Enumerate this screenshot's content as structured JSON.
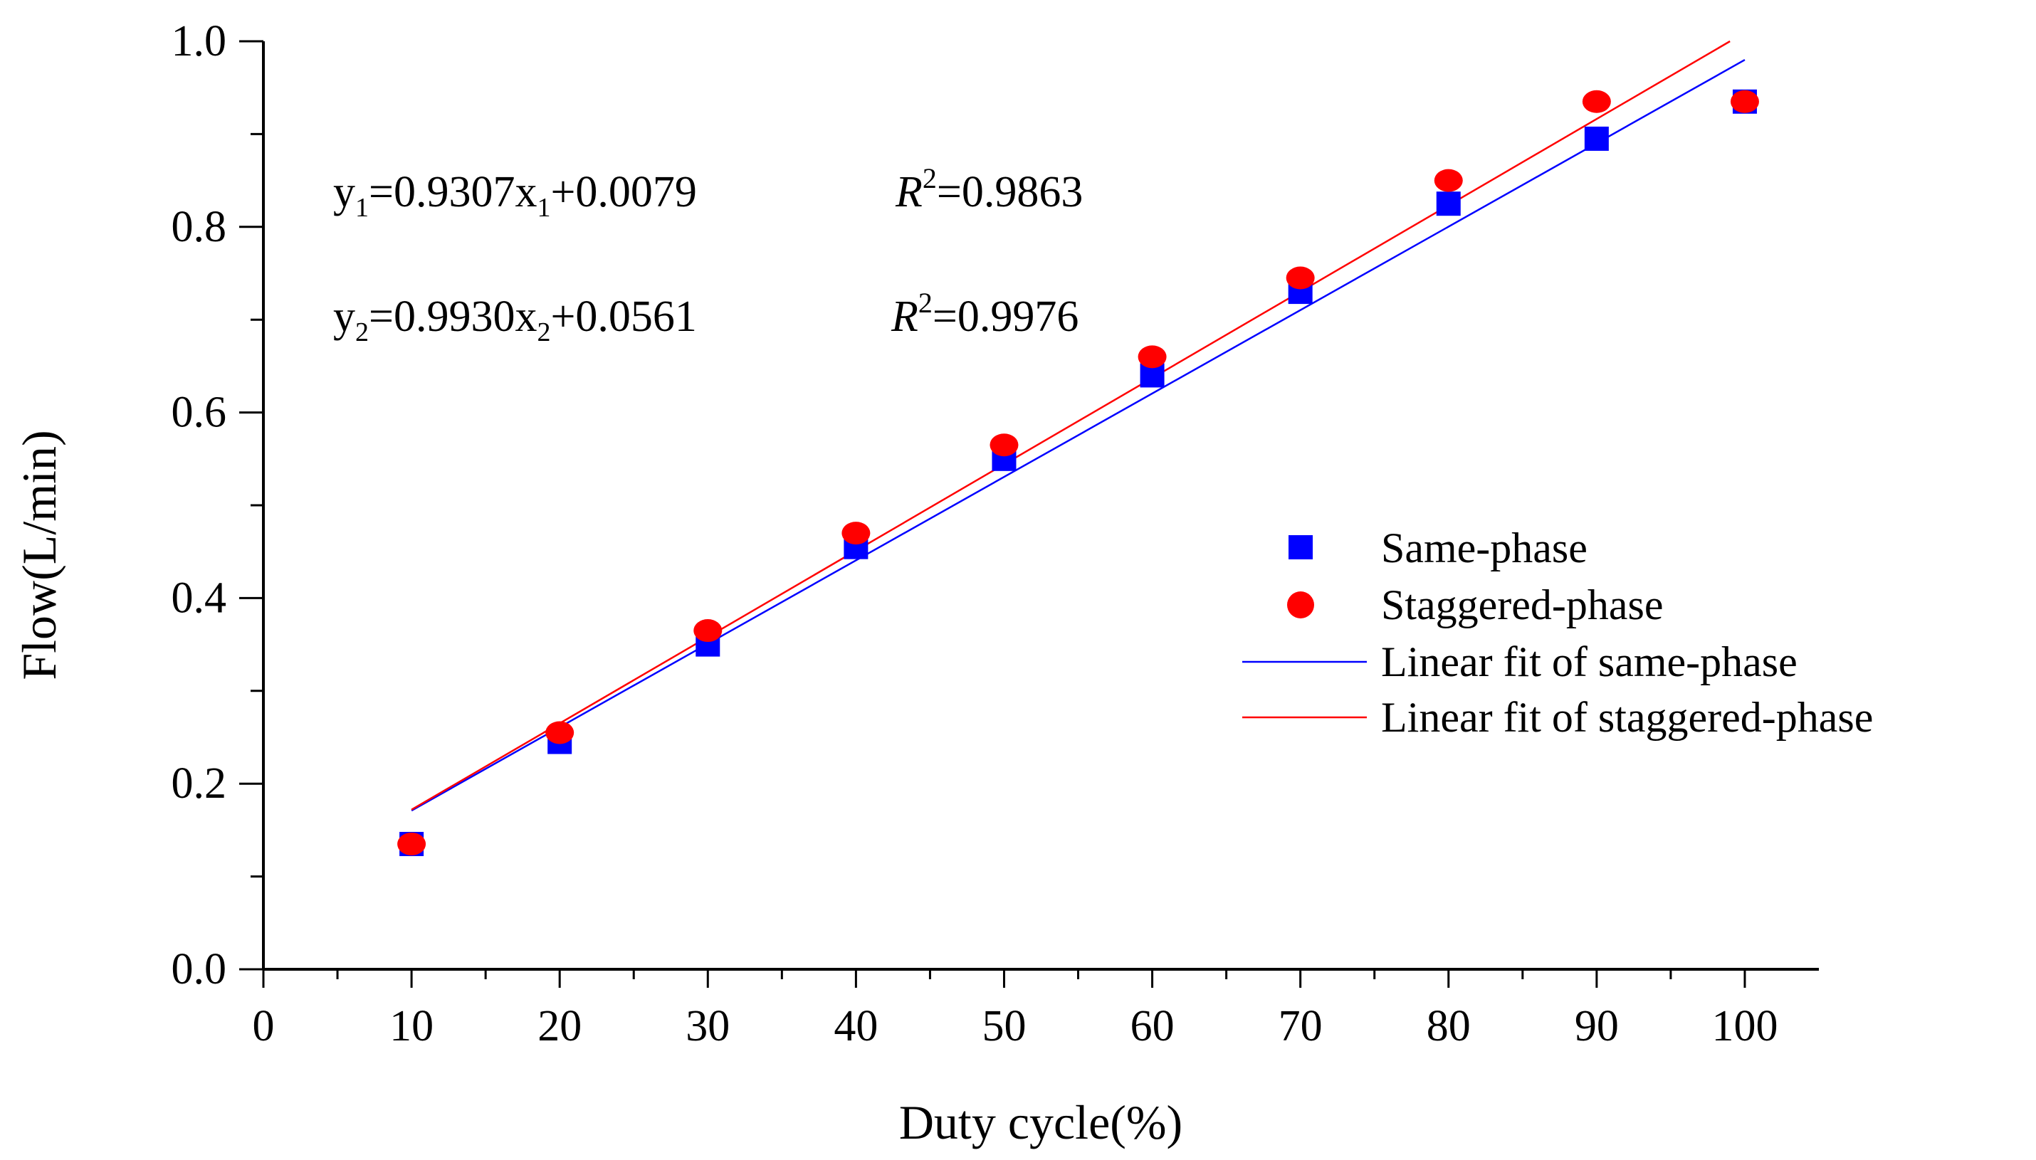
{
  "chart_data": {
    "type": "scatter",
    "title": "",
    "xlabel": "Duty cycle(%)",
    "ylabel": "Flow(L/min)",
    "xlim": [
      0,
      105
    ],
    "ylim": [
      0,
      1.0
    ],
    "x_ticks": [
      0,
      10,
      20,
      30,
      40,
      50,
      60,
      70,
      80,
      90,
      100
    ],
    "y_ticks": [
      0.0,
      0.2,
      0.4,
      0.6,
      0.8,
      1.0
    ],
    "x_tick_labels": [
      "0",
      "10",
      "20",
      "30",
      "40",
      "50",
      "60",
      "70",
      "80",
      "90",
      "100"
    ],
    "y_tick_labels": [
      "0.0",
      "0.2",
      "0.4",
      "0.6",
      "0.8",
      "1.0"
    ],
    "grid": false,
    "legend_position": "right",
    "x": [
      10,
      20,
      30,
      40,
      50,
      60,
      70,
      80,
      90,
      100
    ],
    "series": [
      {
        "name": "Same-phase",
        "kind": "scatter",
        "marker": "square",
        "color": "#0000ff",
        "values": [
          0.135,
          0.245,
          0.35,
          0.455,
          0.55,
          0.64,
          0.73,
          0.825,
          0.895,
          0.935
        ]
      },
      {
        "name": "Staggered-phase",
        "kind": "scatter",
        "marker": "circle",
        "color": "#ff0000",
        "values": [
          0.135,
          0.255,
          0.365,
          0.47,
          0.565,
          0.66,
          0.745,
          0.85,
          0.935,
          0.935
        ]
      },
      {
        "name": "Linear fit of same-phase",
        "kind": "line",
        "color": "#0000ff",
        "x": [
          10,
          100
        ],
        "values": [
          0.171,
          0.98
        ]
      },
      {
        "name": "Linear fit of staggered-phase",
        "kind": "line",
        "color": "#ff0000",
        "x": [
          10,
          99
        ],
        "values": [
          0.172,
          1.0
        ]
      }
    ],
    "annotations": [
      {
        "y": "y",
        "ysub": "1",
        "eq": "=0.9307x",
        "xsub": "1",
        "rest": "+0.0079",
        "r": "R",
        "rsup": "2",
        "rval": "=0.9863"
      },
      {
        "y": "y",
        "ysub": "2",
        "eq": "=0.9930x",
        "xsub": "2",
        "rest": "+0.0561",
        "r": "R",
        "rsup": "2",
        "rval": "=0.9976"
      }
    ]
  }
}
